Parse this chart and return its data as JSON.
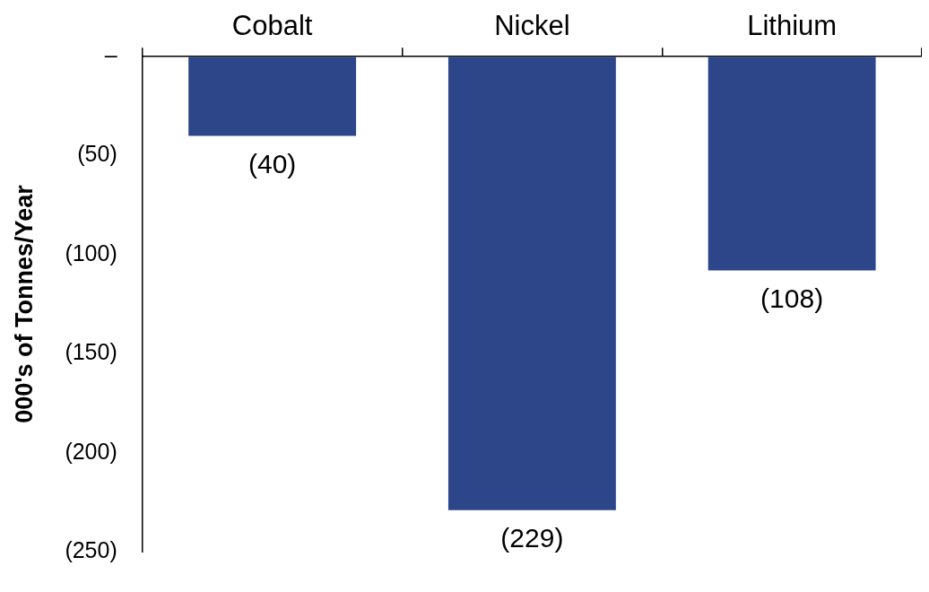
{
  "chart_data": {
    "type": "bar",
    "ylabel": "000's of Tonnes/Year",
    "categories": [
      "Cobalt",
      "Nickel",
      "Lithium"
    ],
    "values": [
      -40,
      -229,
      -108
    ],
    "value_labels": [
      "(40)",
      "(229)",
      "(108)"
    ],
    "color": "#2c4689",
    "ylim": [
      -250,
      0
    ],
    "yticks": [
      {
        "value": -250,
        "label": "(250)"
      },
      {
        "value": -200,
        "label": "(200)"
      },
      {
        "value": -150,
        "label": "(150)"
      },
      {
        "value": -100,
        "label": "(100)"
      },
      {
        "value": -50,
        "label": "(50)"
      },
      {
        "value": 0,
        "label": "–"
      }
    ],
    "grid": false,
    "legend": false
  }
}
